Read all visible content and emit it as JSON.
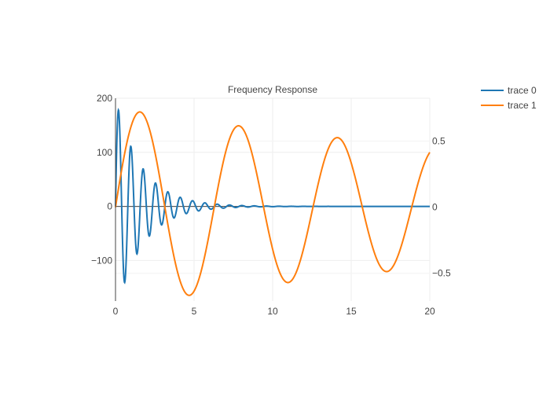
{
  "chart_data": {
    "type": "line",
    "title": "Frequency Response",
    "xlabel": "",
    "ylabel": "",
    "y2label": "",
    "xlim": [
      0,
      20
    ],
    "ylim": [
      -175,
      200
    ],
    "y2lim": [
      -0.71,
      0.825
    ],
    "x_ticks": [
      0,
      5,
      10,
      15,
      20
    ],
    "y_ticks": [
      -100,
      0,
      100,
      200
    ],
    "y2_ticks": [
      -0.5,
      0,
      0.5
    ],
    "y_tick_labels": [
      "−100",
      "0",
      "100",
      "200"
    ],
    "y2_tick_labels": [
      "−0.5",
      "0",
      "0.5"
    ],
    "grid": true,
    "legend": "top-right",
    "series": [
      {
        "name": "trace 0",
        "axis": "y",
        "color": "#1f77b4",
        "description": "damped oscillation: y = 200·e^(−0.6x)·sin(8x)",
        "x": [
          0,
          0.196,
          0.589,
          0.982,
          1.374,
          1.767,
          2.16,
          2.553,
          2.945,
          3.338,
          3.731,
          4.123,
          4.516,
          4.909,
          5.301,
          5.694,
          6.087,
          6.48,
          7.0,
          8.0,
          9.0,
          10.0,
          15.0,
          20.0
        ],
        "values": [
          0,
          178,
          -140,
          111,
          -88,
          69,
          -55,
          43,
          -34,
          27,
          -21,
          17,
          -13,
          10,
          -8,
          7,
          -5,
          4,
          -2,
          1,
          0.5,
          0,
          0,
          0
        ]
      },
      {
        "name": "trace 1",
        "axis": "y2",
        "color": "#ff7f0e",
        "description": "y2 = 0.75·e^(−0.025x)·sin(x)",
        "x": [
          0,
          1.571,
          3.142,
          4.712,
          6.283,
          7.854,
          9.425,
          10.996,
          12.566,
          14.137,
          15.708,
          17.279,
          18.85,
          20.0
        ],
        "values": [
          0,
          0.72,
          0,
          -0.67,
          0,
          0.62,
          0,
          -0.57,
          0,
          0.53,
          0,
          -0.49,
          0,
          0.27
        ]
      }
    ]
  }
}
